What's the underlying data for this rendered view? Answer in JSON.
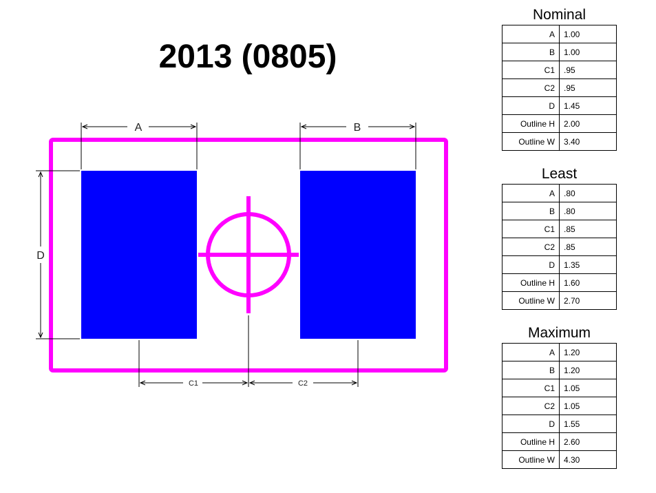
{
  "title": "2013 (0805)",
  "colors": {
    "outline": "#ff00ff",
    "pad": "#0000ff",
    "dimension": "#000000"
  },
  "dimension_labels": {
    "a": "A",
    "b": "B",
    "c1": "C1",
    "c2": "C2",
    "d": "D"
  },
  "tables": [
    {
      "heading": "Nominal",
      "rows": [
        {
          "label": "A",
          "value": "1.00"
        },
        {
          "label": "B",
          "value": "1.00"
        },
        {
          "label": "C1",
          "value": ".95"
        },
        {
          "label": "C2",
          "value": ".95"
        },
        {
          "label": "D",
          "value": "1.45"
        },
        {
          "label": "Outline H",
          "value": "2.00"
        },
        {
          "label": "Outline W",
          "value": "3.40"
        }
      ]
    },
    {
      "heading": "Least",
      "rows": [
        {
          "label": "A",
          "value": ".80"
        },
        {
          "label": "B",
          "value": ".80"
        },
        {
          "label": "C1",
          "value": ".85"
        },
        {
          "label": "C2",
          "value": ".85"
        },
        {
          "label": "D",
          "value": "1.35"
        },
        {
          "label": "Outline H",
          "value": "1.60"
        },
        {
          "label": "Outline W",
          "value": "2.70"
        }
      ]
    },
    {
      "heading": "Maximum",
      "rows": [
        {
          "label": "A",
          "value": "1.20"
        },
        {
          "label": "B",
          "value": "1.20"
        },
        {
          "label": "C1",
          "value": "1.05"
        },
        {
          "label": "C2",
          "value": "1.05"
        },
        {
          "label": "D",
          "value": "1.55"
        },
        {
          "label": "Outline H",
          "value": "2.60"
        },
        {
          "label": "Outline W",
          "value": "4.30"
        }
      ]
    }
  ]
}
